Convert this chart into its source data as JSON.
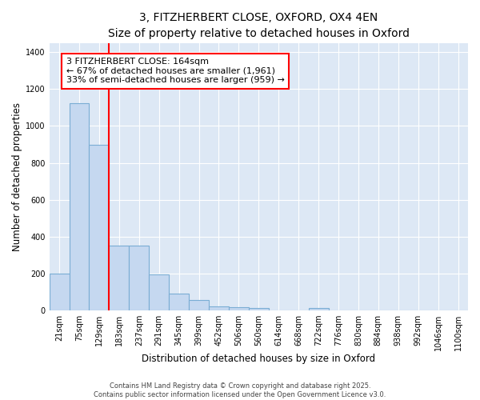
{
  "title_line1": "3, FITZHERBERT CLOSE, OXFORD, OX4 4EN",
  "title_line2": "Size of property relative to detached houses in Oxford",
  "xlabel": "Distribution of detached houses by size in Oxford",
  "ylabel": "Number of detached properties",
  "categories": [
    "21sqm",
    "75sqm",
    "129sqm",
    "183sqm",
    "237sqm",
    "291sqm",
    "345sqm",
    "399sqm",
    "452sqm",
    "506sqm",
    "560sqm",
    "614sqm",
    "668sqm",
    "722sqm",
    "776sqm",
    "830sqm",
    "884sqm",
    "938sqm",
    "992sqm",
    "1046sqm",
    "1100sqm"
  ],
  "values": [
    197,
    1123,
    897,
    350,
    350,
    193,
    90,
    57,
    22,
    18,
    12,
    0,
    0,
    12,
    0,
    0,
    0,
    0,
    0,
    0,
    0
  ],
  "bar_color": "#c5d8f0",
  "bar_edge_color": "#7aadd4",
  "annotation_line1": "3 FITZHERBERT CLOSE: 164sqm",
  "annotation_line2": "← 67% of detached houses are smaller (1,961)",
  "annotation_line3": "33% of semi-detached houses are larger (959) →",
  "background_color": "#dde8f5",
  "grid_color": "#ffffff",
  "footer_line1": "Contains HM Land Registry data © Crown copyright and database right 2025.",
  "footer_line2": "Contains public sector information licensed under the Open Government Licence v3.0.",
  "ylim": [
    0,
    1450
  ],
  "title_fontsize": 10,
  "subtitle_fontsize": 9,
  "axis_label_fontsize": 8.5,
  "tick_fontsize": 7,
  "annot_fontsize": 8,
  "footer_fontsize": 6
}
